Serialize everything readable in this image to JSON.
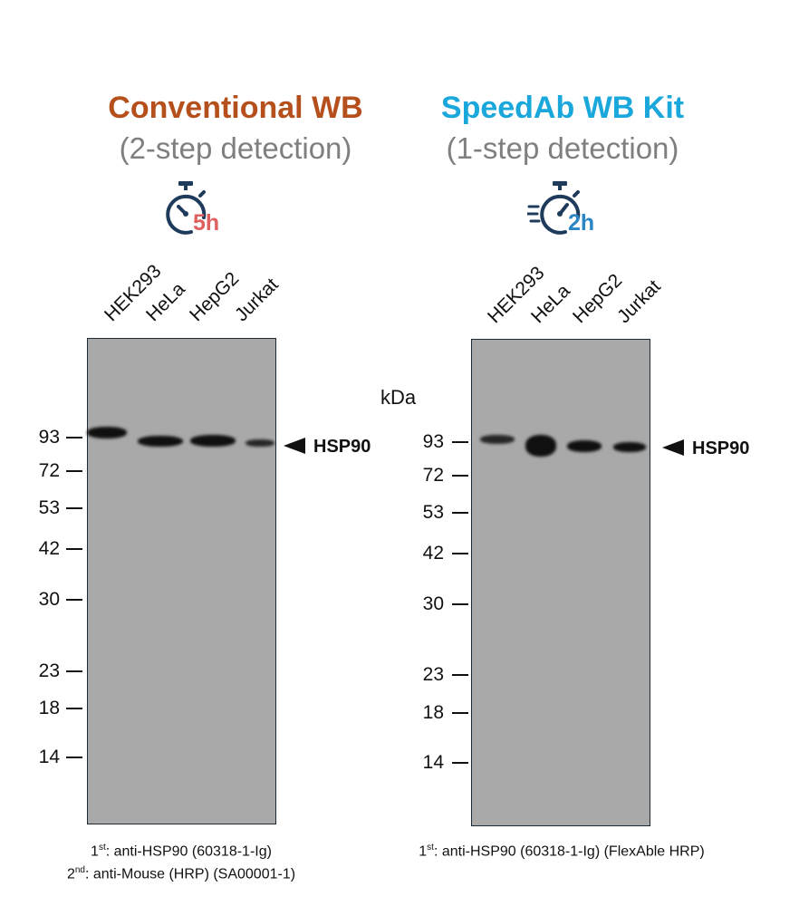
{
  "colors": {
    "left_title": "#b5501c",
    "right_title": "#1aa7dc",
    "blot_bg": "#a9a9a9",
    "icon_navy": "#1f3b5c",
    "left_hours": "#e06060",
    "right_hours": "#2b86c5"
  },
  "left": {
    "title": "Conventional WB",
    "subtitle": "(2-step detection)",
    "timer_label": "5h",
    "lanes": [
      "HEK293",
      "HeLa",
      "HepG2",
      "Jurkat"
    ],
    "mw_markers": [
      "93",
      "72",
      "53",
      "42",
      "30",
      "23",
      "18",
      "14"
    ],
    "target_label": "HSP90",
    "footnote1_sup": "st",
    "footnote1_num": "1",
    "footnote1_text": ": anti-HSP90 (60318-1-Ig)",
    "footnote2_sup": "nd",
    "footnote2_num": "2",
    "footnote2_text": ": anti-Mouse (HRP) (SA00001-1)"
  },
  "right": {
    "title": "SpeedAb WB Kit",
    "subtitle": "(1-step detection)",
    "timer_label": "2h",
    "unit_label": "kDa",
    "lanes": [
      "HEK293",
      "HeLa",
      "HepG2",
      "Jurkat"
    ],
    "mw_markers": [
      "93",
      "72",
      "53",
      "42",
      "30",
      "23",
      "18",
      "14"
    ],
    "target_label": "HSP90",
    "footnote1_sup": "st",
    "footnote1_num": "1",
    "footnote1_text": ": anti-HSP90 (60318-1-Ig) (FlexAble HRP)"
  }
}
